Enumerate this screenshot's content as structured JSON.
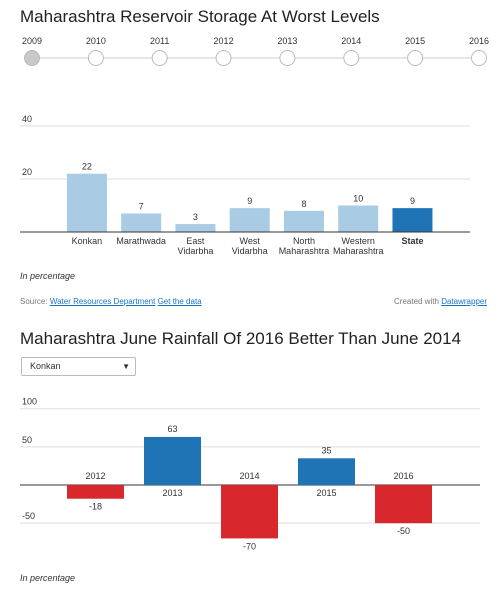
{
  "chart1": {
    "title": "Maharashtra Reservoir Storage At Worst Levels",
    "years": [
      "2009",
      "2010",
      "2011",
      "2012",
      "2013",
      "2014",
      "2015",
      "2016"
    ],
    "selected_year": "2009",
    "note": "In percentage",
    "source_prefix": "Source:",
    "source_link": "Water Resources Department",
    "get_data": "Get the data",
    "credit_prefix": "Created with",
    "credit_link": "Datawrapper"
  },
  "chart2": {
    "title": "Maharashtra June Rainfall Of 2016 Better Than June 2014",
    "dropdown_value": "Konkan",
    "dropdown_arrow": "▼",
    "note": "In percentage"
  },
  "chart_data": [
    {
      "type": "bar",
      "title": "Maharashtra Reservoir Storage At Worst Levels",
      "categories": [
        [
          "Konkan"
        ],
        [
          "Marathwada"
        ],
        [
          "East",
          "Vidarbha"
        ],
        [
          "West",
          "Vidarbha"
        ],
        [
          "North",
          "Maharashtra"
        ],
        [
          "Western",
          "Maharashtra"
        ],
        [
          "State"
        ]
      ],
      "values": [
        22,
        7,
        3,
        9,
        8,
        10,
        9
      ],
      "highlight": "State",
      "y_ticks": [
        20,
        40
      ],
      "ylim": [
        0,
        40
      ],
      "grid": true,
      "colors": {
        "default": "#a9cbe4",
        "highlight": "#1f74b6"
      }
    },
    {
      "type": "bar",
      "title": "Maharashtra June Rainfall Of 2016 Better Than June 2014",
      "categories": [
        "2012",
        "2013",
        "2014",
        "2015",
        "2016"
      ],
      "values": [
        -18,
        63,
        -70,
        35,
        -50
      ],
      "y_ticks": [
        -50,
        50,
        100
      ],
      "ylim": [
        -75,
        100
      ],
      "grid": true,
      "colors": {
        "positive": "#1f74b6",
        "negative": "#d9282d"
      }
    }
  ]
}
